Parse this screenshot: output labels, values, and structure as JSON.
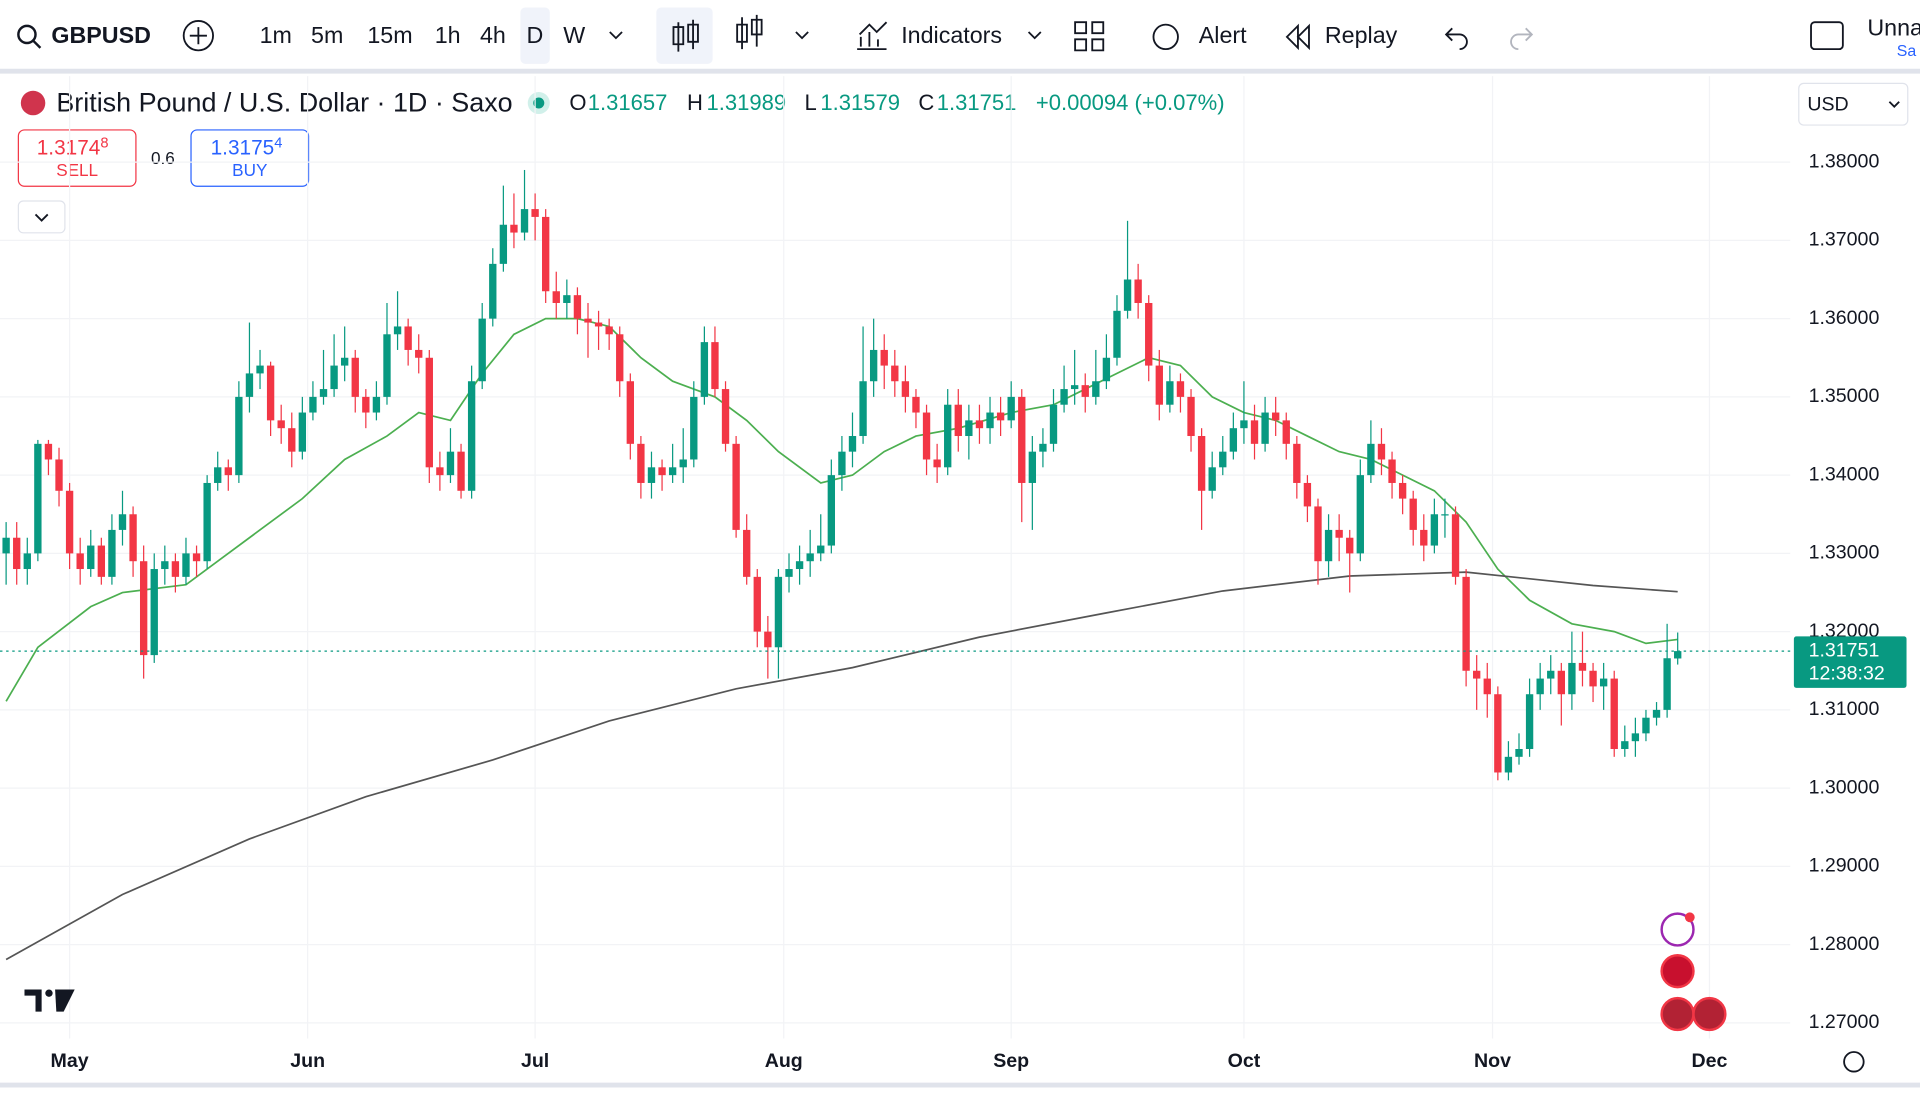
{
  "toolbar": {
    "symbol": "GBPUSD",
    "intervals": [
      "1m",
      "5m",
      "15m",
      "1h",
      "4h",
      "D",
      "W"
    ],
    "indicators": "Indicators",
    "alert": "Alert",
    "replay": "Replay",
    "layout_name": "Unna",
    "save": "Sa"
  },
  "legend": {
    "title": "British Pound / U.S. Dollar · 1D · Saxo",
    "o": "O",
    "h": "H",
    "l": "L",
    "c": "C",
    "change": "+0.00094 (+0.07%)"
  },
  "trade": {
    "sell_price": "1.3174",
    "sell_pip": "8",
    "sell": "SELL",
    "spread": "0.6",
    "buy_price": "1.3175",
    "buy_pip": "4",
    "buy": "BUY",
    "currency": "USD"
  },
  "chart_data": {
    "type": "candlestick",
    "up_color": "#089981",
    "down_color": "#f23645",
    "candles": [
      [
        1.33,
        1.334,
        1.326,
        1.332
      ],
      [
        1.332,
        1.334,
        1.326,
        1.328
      ],
      [
        1.328,
        1.332,
        1.326,
        1.33
      ],
      [
        1.33,
        1.3445,
        1.329,
        1.344
      ],
      [
        1.344,
        1.3445,
        1.34,
        1.342
      ],
      [
        1.342,
        1.3435,
        1.336,
        1.338
      ],
      [
        1.338,
        1.339,
        1.328,
        1.33
      ],
      [
        1.33,
        1.332,
        1.326,
        1.328
      ],
      [
        1.328,
        1.333,
        1.327,
        1.331
      ],
      [
        1.331,
        1.332,
        1.326,
        1.327
      ],
      [
        1.327,
        1.335,
        1.326,
        1.333
      ],
      [
        1.333,
        1.338,
        1.331,
        1.335
      ],
      [
        1.335,
        1.336,
        1.327,
        1.329
      ],
      [
        1.329,
        1.331,
        1.314,
        1.317
      ],
      [
        1.317,
        1.33,
        1.316,
        1.328
      ],
      [
        1.328,
        1.331,
        1.326,
        1.329
      ],
      [
        1.329,
        1.33,
        1.325,
        1.327
      ],
      [
        1.327,
        1.332,
        1.326,
        1.33
      ],
      [
        1.33,
        1.331,
        1.327,
        1.329
      ],
      [
        1.329,
        1.34,
        1.328,
        1.339
      ],
      [
        1.339,
        1.343,
        1.338,
        1.341
      ],
      [
        1.341,
        1.342,
        1.338,
        1.34
      ],
      [
        1.34,
        1.352,
        1.339,
        1.35
      ],
      [
        1.35,
        1.3595,
        1.348,
        1.353
      ],
      [
        1.353,
        1.356,
        1.351,
        1.354
      ],
      [
        1.354,
        1.3545,
        1.345,
        1.347
      ],
      [
        1.347,
        1.349,
        1.344,
        1.346
      ],
      [
        1.346,
        1.348,
        1.341,
        1.343
      ],
      [
        1.343,
        1.35,
        1.342,
        1.348
      ],
      [
        1.348,
        1.352,
        1.347,
        1.35
      ],
      [
        1.35,
        1.356,
        1.349,
        1.351
      ],
      [
        1.351,
        1.358,
        1.35,
        1.354
      ],
      [
        1.354,
        1.359,
        1.352,
        1.355
      ],
      [
        1.355,
        1.356,
        1.348,
        1.35
      ],
      [
        1.35,
        1.351,
        1.346,
        1.348
      ],
      [
        1.348,
        1.352,
        1.347,
        1.35
      ],
      [
        1.35,
        1.362,
        1.349,
        1.358
      ],
      [
        1.358,
        1.3635,
        1.356,
        1.359
      ],
      [
        1.359,
        1.36,
        1.354,
        1.356
      ],
      [
        1.356,
        1.358,
        1.353,
        1.355
      ],
      [
        1.355,
        1.356,
        1.339,
        1.341
      ],
      [
        1.341,
        1.343,
        1.338,
        1.34
      ],
      [
        1.34,
        1.346,
        1.339,
        1.343
      ],
      [
        1.343,
        1.344,
        1.337,
        1.338
      ],
      [
        1.338,
        1.354,
        1.337,
        1.352
      ],
      [
        1.352,
        1.362,
        1.351,
        1.36
      ],
      [
        1.36,
        1.369,
        1.359,
        1.367
      ],
      [
        1.367,
        1.377,
        1.366,
        1.372
      ],
      [
        1.372,
        1.376,
        1.369,
        1.371
      ],
      [
        1.371,
        1.379,
        1.37,
        1.374
      ],
      [
        1.374,
        1.376,
        1.37,
        1.373
      ],
      [
        1.373,
        1.374,
        1.362,
        1.3635
      ],
      [
        1.3635,
        1.366,
        1.36,
        1.362
      ],
      [
        1.362,
        1.365,
        1.36,
        1.363
      ],
      [
        1.363,
        1.364,
        1.358,
        1.36
      ],
      [
        1.36,
        1.362,
        1.355,
        1.3595
      ],
      [
        1.3595,
        1.361,
        1.356,
        1.359
      ],
      [
        1.359,
        1.36,
        1.356,
        1.358
      ],
      [
        1.358,
        1.359,
        1.35,
        1.352
      ],
      [
        1.352,
        1.353,
        1.342,
        1.344
      ],
      [
        1.344,
        1.345,
        1.337,
        1.339
      ],
      [
        1.339,
        1.343,
        1.337,
        1.341
      ],
      [
        1.341,
        1.342,
        1.338,
        1.34
      ],
      [
        1.34,
        1.344,
        1.339,
        1.341
      ],
      [
        1.341,
        1.346,
        1.339,
        1.342
      ],
      [
        1.342,
        1.352,
        1.341,
        1.35
      ],
      [
        1.35,
        1.359,
        1.349,
        1.357
      ],
      [
        1.357,
        1.359,
        1.35,
        1.351
      ],
      [
        1.351,
        1.352,
        1.343,
        1.344
      ],
      [
        1.344,
        1.345,
        1.332,
        1.333
      ],
      [
        1.333,
        1.335,
        1.326,
        1.327
      ],
      [
        1.327,
        1.328,
        1.318,
        1.32
      ],
      [
        1.32,
        1.322,
        1.314,
        1.318
      ],
      [
        1.318,
        1.328,
        1.314,
        1.327
      ],
      [
        1.327,
        1.33,
        1.325,
        1.328
      ],
      [
        1.328,
        1.331,
        1.326,
        1.329
      ],
      [
        1.329,
        1.333,
        1.327,
        1.33
      ],
      [
        1.33,
        1.335,
        1.329,
        1.331
      ],
      [
        1.331,
        1.342,
        1.33,
        1.34
      ],
      [
        1.34,
        1.345,
        1.338,
        1.343
      ],
      [
        1.343,
        1.348,
        1.341,
        1.345
      ],
      [
        1.345,
        1.359,
        1.344,
        1.352
      ],
      [
        1.352,
        1.36,
        1.35,
        1.356
      ],
      [
        1.356,
        1.358,
        1.351,
        1.354
      ],
      [
        1.354,
        1.356,
        1.35,
        1.352
      ],
      [
        1.352,
        1.354,
        1.348,
        1.35
      ],
      [
        1.35,
        1.351,
        1.346,
        1.348
      ],
      [
        1.348,
        1.349,
        1.34,
        1.342
      ],
      [
        1.342,
        1.344,
        1.339,
        1.341
      ],
      [
        1.341,
        1.351,
        1.34,
        1.349
      ],
      [
        1.349,
        1.351,
        1.343,
        1.345
      ],
      [
        1.345,
        1.349,
        1.342,
        1.347
      ],
      [
        1.347,
        1.349,
        1.344,
        1.346
      ],
      [
        1.346,
        1.35,
        1.344,
        1.348
      ],
      [
        1.348,
        1.35,
        1.345,
        1.347
      ],
      [
        1.347,
        1.352,
        1.346,
        1.35
      ],
      [
        1.35,
        1.351,
        1.334,
        1.339
      ],
      [
        1.339,
        1.345,
        1.333,
        1.343
      ],
      [
        1.343,
        1.346,
        1.341,
        1.344
      ],
      [
        1.344,
        1.351,
        1.343,
        1.349
      ],
      [
        1.349,
        1.354,
        1.348,
        1.351
      ],
      [
        1.351,
        1.356,
        1.349,
        1.3515
      ],
      [
        1.3515,
        1.353,
        1.348,
        1.35
      ],
      [
        1.35,
        1.356,
        1.349,
        1.352
      ],
      [
        1.352,
        1.358,
        1.351,
        1.355
      ],
      [
        1.355,
        1.363,
        1.354,
        1.361
      ],
      [
        1.361,
        1.3725,
        1.36,
        1.365
      ],
      [
        1.365,
        1.367,
        1.36,
        1.362
      ],
      [
        1.362,
        1.363,
        1.352,
        1.354
      ],
      [
        1.354,
        1.356,
        1.347,
        1.349
      ],
      [
        1.349,
        1.354,
        1.348,
        1.352
      ],
      [
        1.352,
        1.353,
        1.348,
        1.35
      ],
      [
        1.35,
        1.351,
        1.343,
        1.345
      ],
      [
        1.345,
        1.346,
        1.333,
        1.338
      ],
      [
        1.338,
        1.343,
        1.337,
        1.341
      ],
      [
        1.341,
        1.345,
        1.34,
        1.343
      ],
      [
        1.343,
        1.348,
        1.342,
        1.346
      ],
      [
        1.346,
        1.352,
        1.344,
        1.347
      ],
      [
        1.347,
        1.349,
        1.342,
        1.344
      ],
      [
        1.344,
        1.35,
        1.343,
        1.348
      ],
      [
        1.348,
        1.35,
        1.345,
        1.347
      ],
      [
        1.347,
        1.348,
        1.342,
        1.344
      ],
      [
        1.344,
        1.345,
        1.337,
        1.339
      ],
      [
        1.339,
        1.34,
        1.334,
        1.336
      ],
      [
        1.336,
        1.337,
        1.326,
        1.329
      ],
      [
        1.329,
        1.335,
        1.327,
        1.333
      ],
      [
        1.333,
        1.335,
        1.329,
        1.332
      ],
      [
        1.332,
        1.333,
        1.325,
        1.33
      ],
      [
        1.33,
        1.342,
        1.329,
        1.34
      ],
      [
        1.34,
        1.347,
        1.339,
        1.344
      ],
      [
        1.344,
        1.346,
        1.34,
        1.342
      ],
      [
        1.342,
        1.343,
        1.337,
        1.339
      ],
      [
        1.339,
        1.34,
        1.335,
        1.337
      ],
      [
        1.337,
        1.338,
        1.331,
        1.333
      ],
      [
        1.333,
        1.335,
        1.329,
        1.331
      ],
      [
        1.331,
        1.337,
        1.33,
        1.335
      ],
      [
        1.335,
        1.337,
        1.332,
        1.335
      ],
      [
        1.335,
        1.336,
        1.326,
        1.327
      ],
      [
        1.327,
        1.328,
        1.313,
        1.315
      ],
      [
        1.315,
        1.317,
        1.31,
        1.314
      ],
      [
        1.314,
        1.316,
        1.309,
        1.312
      ],
      [
        1.312,
        1.313,
        1.301,
        1.302
      ],
      [
        1.302,
        1.306,
        1.301,
        1.304
      ],
      [
        1.304,
        1.307,
        1.303,
        1.305
      ],
      [
        1.305,
        1.314,
        1.304,
        1.312
      ],
      [
        1.312,
        1.316,
        1.31,
        1.314
      ],
      [
        1.314,
        1.317,
        1.312,
        1.315
      ],
      [
        1.315,
        1.316,
        1.308,
        1.312
      ],
      [
        1.312,
        1.32,
        1.31,
        1.316
      ],
      [
        1.316,
        1.32,
        1.313,
        1.315
      ],
      [
        1.315,
        1.316,
        1.311,
        1.313
      ],
      [
        1.313,
        1.316,
        1.31,
        1.314
      ],
      [
        1.314,
        1.315,
        1.304,
        1.305
      ],
      [
        1.305,
        1.308,
        1.304,
        1.306
      ],
      [
        1.306,
        1.309,
        1.304,
        1.307
      ],
      [
        1.307,
        1.31,
        1.306,
        1.309
      ],
      [
        1.309,
        1.311,
        1.308,
        1.31
      ],
      [
        1.31,
        1.321,
        1.309,
        1.3166
      ],
      [
        1.31657,
        1.31989,
        1.31579,
        1.31751
      ]
    ],
    "series": [
      {
        "color": "#4caf50",
        "x": [
          0,
          3,
          8,
          11,
          17,
          20,
          24,
          28,
          32,
          36,
          39,
          42,
          45,
          48,
          51,
          54,
          57,
          60,
          63,
          67,
          70,
          73,
          77,
          80,
          83,
          86,
          90,
          95,
          99,
          102,
          105,
          108,
          111,
          114,
          117,
          120,
          123,
          126,
          129,
          132,
          135,
          138,
          141,
          144,
          148,
          152,
          155,
          158
        ],
        "values": [
          1.3111,
          1.318,
          1.3232,
          1.325,
          1.326,
          1.329,
          1.333,
          1.337,
          1.342,
          1.345,
          1.348,
          1.347,
          1.353,
          1.358,
          1.36,
          1.36,
          1.359,
          1.355,
          1.352,
          1.35,
          1.347,
          1.343,
          1.339,
          1.34,
          1.343,
          1.345,
          1.346,
          1.348,
          1.349,
          1.351,
          1.353,
          1.355,
          1.354,
          1.35,
          1.348,
          1.347,
          1.345,
          1.343,
          1.342,
          1.34,
          1.338,
          1.334,
          1.328,
          1.324,
          1.321,
          1.32,
          1.3185,
          1.319
        ]
      },
      {
        "color": "#555555",
        "x": [
          0,
          11,
          23,
          34,
          46,
          57,
          69,
          80,
          92,
          104,
          115,
          127,
          138,
          150,
          158
        ],
        "values": [
          1.2781,
          1.2864,
          1.2935,
          1.2989,
          1.3036,
          1.3086,
          1.3127,
          1.3154,
          1.3193,
          1.3224,
          1.3252,
          1.3271,
          1.3276,
          1.3259,
          1.3251
        ]
      }
    ],
    "ylim": [
      1.268,
      1.391
    ],
    "yticks": [
      {
        "value": 1.38,
        "label": "1.38000"
      },
      {
        "value": 1.37,
        "label": "1.37000"
      },
      {
        "value": 1.36,
        "label": "1.36000"
      },
      {
        "value": 1.35,
        "label": "1.35000"
      },
      {
        "value": 1.34,
        "label": "1.34000"
      },
      {
        "value": 1.33,
        "label": "1.33000"
      },
      {
        "value": 1.32,
        "label": "1.32000"
      },
      {
        "value": 1.31,
        "label": "1.31000"
      },
      {
        "value": 1.3,
        "label": "1.30000"
      },
      {
        "value": 1.29,
        "label": "1.29000"
      },
      {
        "value": 1.28,
        "label": "1.28000"
      },
      {
        "value": 1.27,
        "label": "1.27000"
      }
    ],
    "xticks": [
      {
        "value": 6,
        "label": "May"
      },
      {
        "value": 28.5,
        "label": "Jun"
      },
      {
        "value": 50,
        "label": "Jul"
      },
      {
        "value": 73.5,
        "label": "Aug"
      },
      {
        "value": 95,
        "label": "Sep"
      },
      {
        "value": 117,
        "label": "Oct"
      },
      {
        "value": 140.5,
        "label": "Nov"
      },
      {
        "value": 161,
        "label": "Dec"
      }
    ],
    "countdown": "12:38:32",
    "grid": true
  }
}
